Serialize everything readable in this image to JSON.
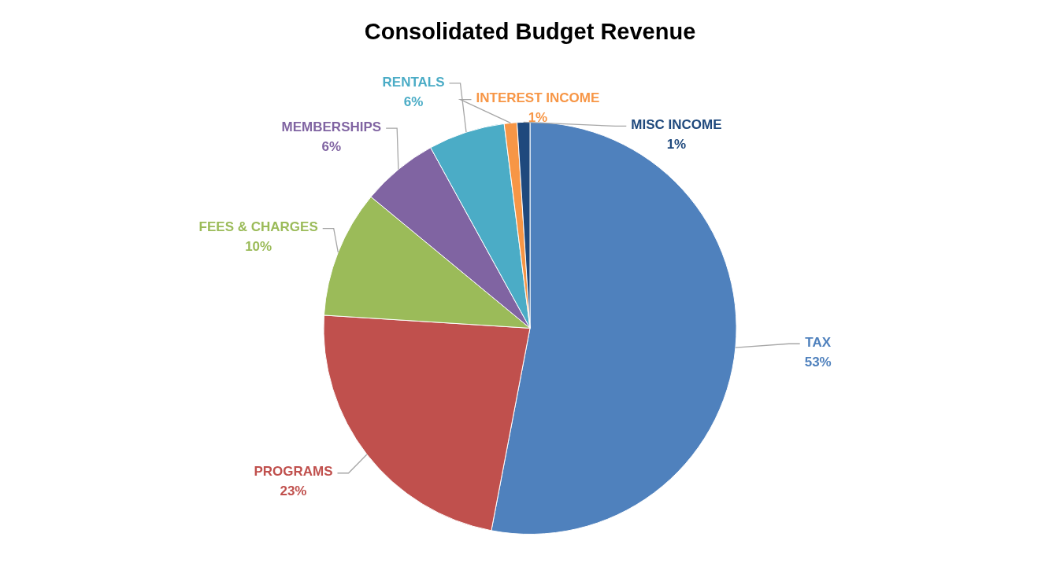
{
  "chart_data": {
    "type": "pie",
    "title": "Consolidated Budget Revenue",
    "categories": [
      "TAX",
      "PROGRAMS",
      "FEES & CHARGES",
      "MEMBERSHIPS",
      "RENTALS",
      "INTEREST INCOME",
      "MISC INCOME"
    ],
    "values": [
      53,
      23,
      10,
      6,
      6,
      1,
      1
    ],
    "colors": [
      "#4f81bd",
      "#c0504d",
      "#9bbb59",
      "#8064a2",
      "#4bacc6",
      "#f79646",
      "#1f497d"
    ],
    "value_labels": [
      "53%",
      "23%",
      "10%",
      "6%",
      "6%",
      "1%",
      "1%"
    ],
    "legend": false
  }
}
